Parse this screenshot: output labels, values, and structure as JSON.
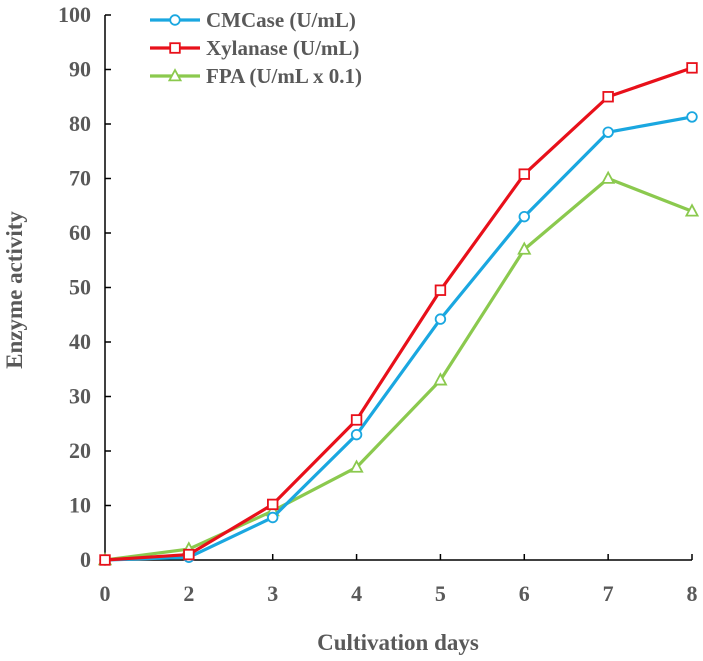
{
  "chart_data": {
    "type": "line",
    "title": "",
    "xlabel": "Cultivation days",
    "ylabel": "Enzyme activity",
    "categories": [
      "0",
      "2",
      "3",
      "4",
      "5",
      "6",
      "7",
      "8"
    ],
    "ylim": [
      0,
      100
    ],
    "yticks": [
      "0",
      "10",
      "20",
      "30",
      "40",
      "50",
      "60",
      "70",
      "80",
      "90",
      "100"
    ],
    "legend_position": "top-left",
    "series": [
      {
        "name": "CMCase (U/mL)",
        "color": "#1AA7E0",
        "marker": "circle",
        "values": [
          0,
          0.5,
          7.8,
          23,
          44.2,
          63,
          78.5,
          81.3
        ]
      },
      {
        "name": "Xylanase (U/mL)",
        "color": "#E8101A",
        "marker": "square",
        "values": [
          0,
          1,
          10.2,
          25.7,
          49.5,
          70.8,
          85,
          90.3
        ]
      },
      {
        "name": "FPA (U/mL x 0.1)",
        "color": "#8BC94E",
        "marker": "triangle",
        "values": [
          0,
          2,
          9,
          17,
          33,
          57,
          70,
          64
        ]
      }
    ]
  }
}
